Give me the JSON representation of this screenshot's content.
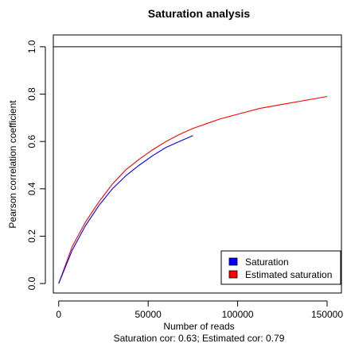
{
  "chart_data": {
    "type": "line",
    "title": "Saturation analysis",
    "xlabel": "Number of reads",
    "subtitle": "Saturation cor: 0.63; Estimated cor: 0.79",
    "ylabel": "Pearson correlation coefficient",
    "xlim": [
      -3000,
      158000
    ],
    "ylim": [
      -0.04,
      1.05
    ],
    "x_ticks": [
      0,
      50000,
      100000,
      150000
    ],
    "x_tick_labels": [
      "0",
      "50000",
      "100000",
      "150000"
    ],
    "y_ticks": [
      0.0,
      0.2,
      0.4,
      0.6,
      0.8,
      1.0
    ],
    "y_tick_labels": [
      "0.0",
      "0.2",
      "0.4",
      "0.6",
      "0.8",
      "1.0"
    ],
    "reference_line": {
      "y": 1.0,
      "color": "#000000"
    },
    "legend": {
      "position": "bottom-right"
    },
    "series": [
      {
        "name": "Saturation",
        "color": "#0000ff",
        "x": [
          0,
          7500,
          15000,
          22500,
          30000,
          37500,
          45000,
          52500,
          60000,
          67500,
          75000
        ],
        "y": [
          0.0,
          0.14,
          0.245,
          0.33,
          0.4,
          0.455,
          0.5,
          0.54,
          0.575,
          0.6,
          0.625
        ]
      },
      {
        "name": "Estimated saturation",
        "color": "#ff0000",
        "x": [
          0,
          7500,
          15000,
          22500,
          30000,
          37500,
          45000,
          52500,
          60000,
          67500,
          75000,
          82500,
          90000,
          97500,
          105000,
          112500,
          120000,
          127500,
          135000,
          142500,
          150000
        ],
        "y": [
          0.0,
          0.155,
          0.26,
          0.345,
          0.42,
          0.48,
          0.525,
          0.565,
          0.6,
          0.63,
          0.655,
          0.675,
          0.695,
          0.71,
          0.725,
          0.74,
          0.75,
          0.76,
          0.77,
          0.78,
          0.79
        ]
      }
    ]
  }
}
